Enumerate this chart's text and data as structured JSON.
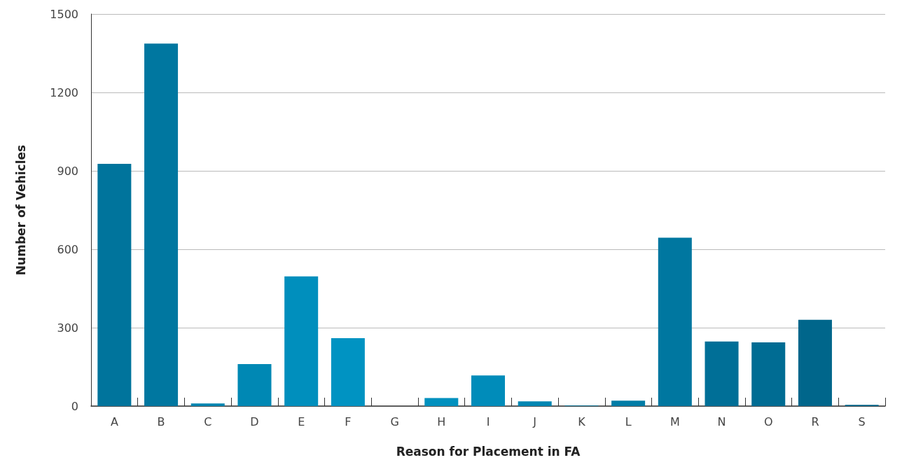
{
  "chart_data": {
    "type": "bar",
    "xlabel": "Reason for Placement in FA",
    "ylabel": "Number of Vehicles",
    "categories": [
      "A",
      "B",
      "C",
      "D",
      "E",
      "F",
      "G",
      "H",
      "I",
      "J",
      "K",
      "L",
      "M",
      "N",
      "O",
      "R",
      "S"
    ],
    "values": [
      927,
      1387,
      10,
      161,
      496,
      260,
      0,
      31,
      117,
      18,
      2,
      21,
      644,
      247,
      244,
      330,
      5
    ],
    "colors": [
      "#00749c",
      "#0077a0",
      "#0085b0",
      "#0088b4",
      "#008fbd",
      "#0093c2",
      "#0093c2",
      "#0090be",
      "#008cba",
      "#0086b2",
      "#0080aa",
      "#007ca6",
      "#0077a0",
      "#006f97",
      "#006c93",
      "#00668b",
      "#006389"
    ],
    "ylim": [
      0,
      1500
    ],
    "yticks": [
      0,
      300,
      600,
      900,
      1200,
      1500
    ],
    "grid": "y"
  }
}
